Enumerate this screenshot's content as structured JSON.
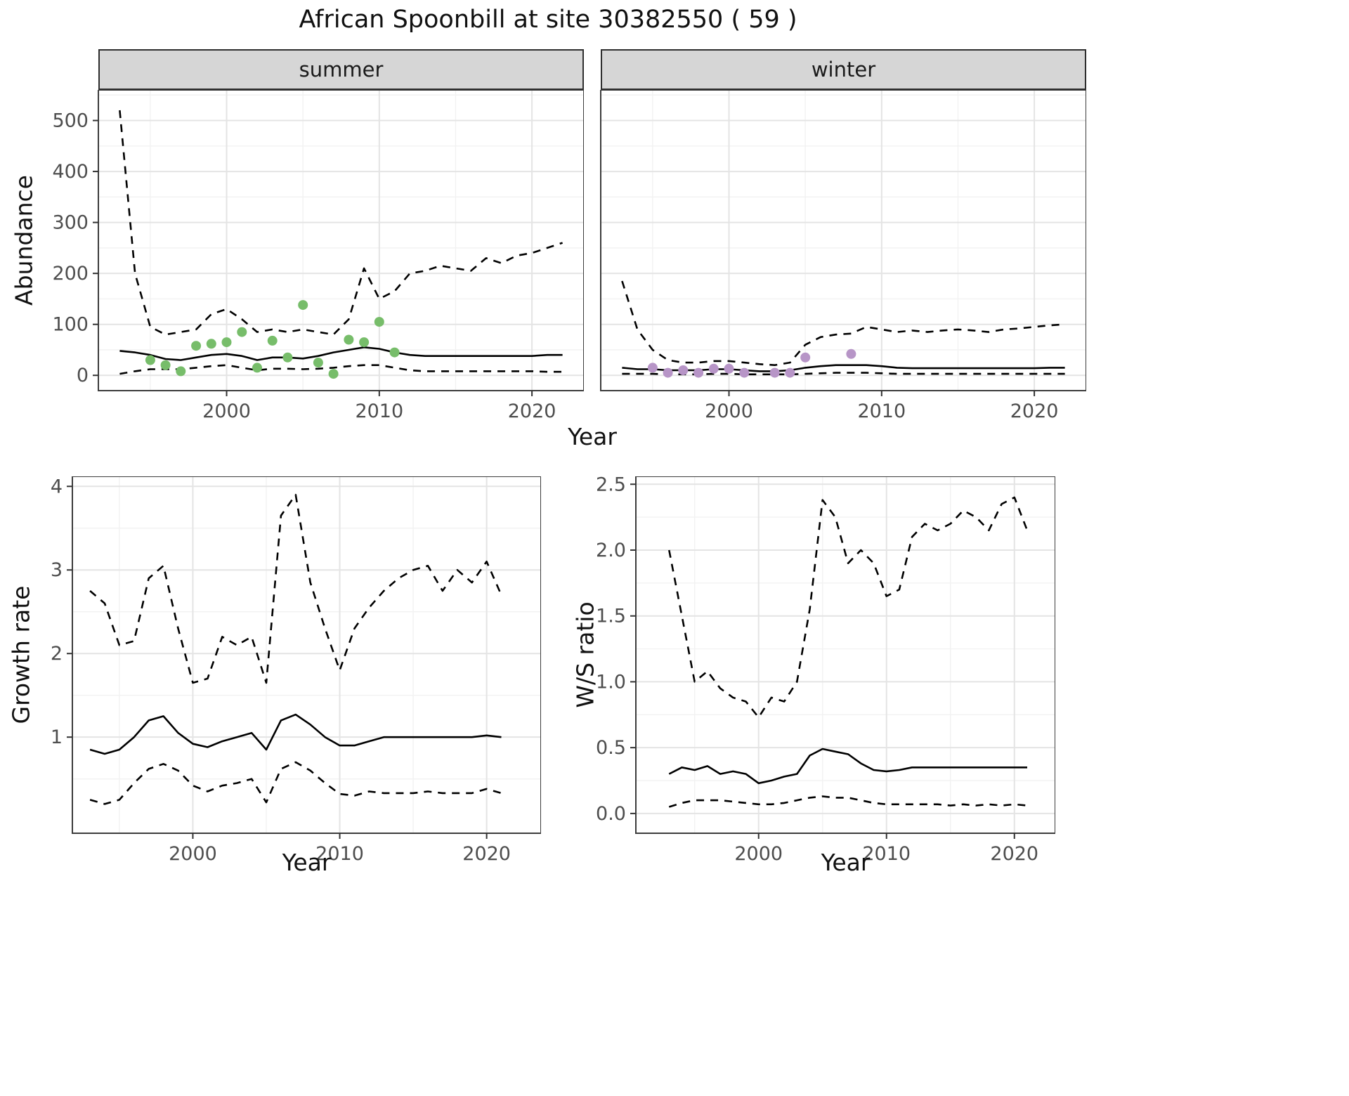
{
  "title": "African Spoonbill at site 30382550 ( 59 )",
  "facets": [
    {
      "label": "summer"
    },
    {
      "label": "winter"
    }
  ],
  "axis_labels": {
    "abundance": "Abundance",
    "year_top": "Year",
    "growth_rate": "Growth rate",
    "ws_ratio": "W/S ratio",
    "year_bottom_left": "Year",
    "year_bottom_right": "Year"
  },
  "colors": {
    "summer_points": "#77bd6a",
    "winter_points": "#b795c7",
    "line": "#000000",
    "grid_major": "#e4e4e4",
    "grid_minor": "#f2f2f2",
    "panel_border": "#3c3c3c",
    "strip_bg": "#d6d6d6",
    "axis_text": "#4d4d4d",
    "tick_mark": "#333333"
  },
  "chart_data": [
    {
      "id": "abundance-summer",
      "type": "line",
      "facet": "summer",
      "xlabel": "Year",
      "ylabel": "Abundance",
      "xlim": [
        1991.6,
        2023.4
      ],
      "ylim": [
        -30,
        560
      ],
      "xticks": [
        2000,
        2010,
        2020
      ],
      "xtick_labels": [
        "2000",
        "2010",
        "2020"
      ],
      "yticks": [
        0,
        100,
        200,
        300,
        400,
        500
      ],
      "ytick_labels": [
        "0",
        "100",
        "200",
        "300",
        "400",
        "500"
      ],
      "x": [
        1993,
        1994,
        1995,
        1996,
        1997,
        1998,
        1999,
        2000,
        2001,
        2002,
        2003,
        2004,
        2005,
        2006,
        2007,
        2008,
        2009,
        2010,
        2011,
        2012,
        2013,
        2014,
        2015,
        2016,
        2017,
        2018,
        2019,
        2020,
        2021,
        2022
      ],
      "series": [
        {
          "name": "ci-upper",
          "style": "dashed",
          "values": [
            520,
            200,
            95,
            80,
            85,
            90,
            120,
            130,
            110,
            85,
            90,
            85,
            90,
            85,
            80,
            110,
            210,
            150,
            165,
            200,
            205,
            215,
            210,
            205,
            230,
            220,
            235,
            240,
            250,
            260
          ]
        },
        {
          "name": "median",
          "style": "solid",
          "values": [
            48,
            45,
            40,
            32,
            30,
            35,
            40,
            42,
            38,
            30,
            35,
            35,
            33,
            38,
            45,
            50,
            55,
            52,
            45,
            40,
            38,
            38,
            38,
            38,
            38,
            38,
            38,
            38,
            40,
            40
          ]
        },
        {
          "name": "ci-lower",
          "style": "dashed",
          "values": [
            3,
            8,
            12,
            12,
            12,
            15,
            18,
            20,
            15,
            10,
            13,
            13,
            12,
            13,
            15,
            18,
            20,
            20,
            15,
            10,
            8,
            8,
            8,
            8,
            8,
            8,
            8,
            8,
            7,
            7
          ]
        }
      ],
      "points": {
        "name": "observed-counts-summer",
        "color_key": "summer_points",
        "values": [
          [
            1995,
            30
          ],
          [
            1996,
            20
          ],
          [
            1997,
            8
          ],
          [
            1998,
            58
          ],
          [
            1999,
            62
          ],
          [
            2000,
            65
          ],
          [
            2001,
            85
          ],
          [
            2002,
            15
          ],
          [
            2003,
            68
          ],
          [
            2004,
            35
          ],
          [
            2005,
            138
          ],
          [
            2006,
            25
          ],
          [
            2007,
            3
          ],
          [
            2008,
            70
          ],
          [
            2009,
            65
          ],
          [
            2010,
            105
          ],
          [
            2011,
            45
          ]
        ]
      }
    },
    {
      "id": "abundance-winter",
      "type": "line",
      "facet": "winter",
      "xlabel": "Year",
      "ylabel": "Abundance",
      "xlim": [
        1991.6,
        2023.4
      ],
      "ylim": [
        -30,
        560
      ],
      "xticks": [
        2000,
        2010,
        2020
      ],
      "xtick_labels": [
        "2000",
        "2010",
        "2020"
      ],
      "yticks": [
        0,
        100,
        200,
        300,
        400,
        500
      ],
      "ytick_labels": [
        "0",
        "100",
        "200",
        "300",
        "400",
        "500"
      ],
      "x": [
        1993,
        1994,
        1995,
        1996,
        1997,
        1998,
        1999,
        2000,
        2001,
        2002,
        2003,
        2004,
        2005,
        2006,
        2007,
        2008,
        2009,
        2010,
        2011,
        2012,
        2013,
        2014,
        2015,
        2016,
        2017,
        2018,
        2019,
        2020,
        2021,
        2022
      ],
      "series": [
        {
          "name": "ci-upper",
          "style": "dashed",
          "values": [
            185,
            90,
            50,
            30,
            25,
            25,
            28,
            28,
            25,
            22,
            20,
            25,
            60,
            75,
            80,
            82,
            95,
            90,
            85,
            88,
            85,
            88,
            90,
            88,
            85,
            90,
            92,
            95,
            98,
            100
          ]
        },
        {
          "name": "median",
          "style": "solid",
          "values": [
            15,
            12,
            12,
            10,
            10,
            10,
            12,
            12,
            10,
            8,
            8,
            10,
            15,
            18,
            20,
            20,
            20,
            18,
            15,
            14,
            14,
            14,
            14,
            14,
            14,
            14,
            14,
            14,
            15,
            15
          ]
        },
        {
          "name": "ci-lower",
          "style": "dashed",
          "values": [
            3,
            3,
            3,
            2,
            2,
            2,
            3,
            3,
            2,
            2,
            2,
            2,
            3,
            4,
            5,
            5,
            5,
            4,
            3,
            3,
            3,
            3,
            3,
            3,
            3,
            3,
            3,
            3,
            3,
            3
          ]
        }
      ],
      "points": {
        "name": "observed-counts-winter",
        "color_key": "winter_points",
        "values": [
          [
            1995,
            15
          ],
          [
            1996,
            5
          ],
          [
            1997,
            10
          ],
          [
            1998,
            5
          ],
          [
            1999,
            13
          ],
          [
            2000,
            13
          ],
          [
            2001,
            5
          ],
          [
            2003,
            5
          ],
          [
            2004,
            5
          ],
          [
            2005,
            35
          ],
          [
            2008,
            42
          ]
        ]
      }
    },
    {
      "id": "growth-rate",
      "type": "line",
      "xlabel": "Year",
      "ylabel": "Growth rate",
      "xlim": [
        1991.8,
        2023.7
      ],
      "ylim": [
        -0.15,
        4.12
      ],
      "xticks": [
        2000,
        2010,
        2020
      ],
      "xtick_labels": [
        "2000",
        "2010",
        "2020"
      ],
      "yticks": [
        1,
        2,
        3,
        4
      ],
      "ytick_labels": [
        "1",
        "2",
        "3",
        "4"
      ],
      "x": [
        1993,
        1994,
        1995,
        1996,
        1997,
        1998,
        1999,
        2000,
        2001,
        2002,
        2003,
        2004,
        2005,
        2006,
        2007,
        2008,
        2009,
        2010,
        2011,
        2012,
        2013,
        2014,
        2015,
        2016,
        2017,
        2018,
        2019,
        2020,
        2021
      ],
      "series": [
        {
          "name": "ci-upper",
          "style": "dashed",
          "values": [
            2.75,
            2.6,
            2.1,
            2.15,
            2.9,
            3.05,
            2.3,
            1.65,
            1.7,
            2.2,
            2.1,
            2.2,
            1.65,
            3.65,
            3.9,
            2.85,
            2.3,
            1.8,
            2.3,
            2.55,
            2.75,
            2.9,
            3.0,
            3.05,
            2.75,
            3.0,
            2.85,
            3.1,
            2.7
          ]
        },
        {
          "name": "median",
          "style": "solid",
          "values": [
            0.85,
            0.8,
            0.85,
            1.0,
            1.2,
            1.25,
            1.05,
            0.92,
            0.88,
            0.95,
            1.0,
            1.05,
            0.85,
            1.2,
            1.27,
            1.15,
            1.0,
            0.9,
            0.9,
            0.95,
            1.0,
            1.0,
            1.0,
            1.0,
            1.0,
            1.0,
            1.0,
            1.02,
            1.0
          ]
        },
        {
          "name": "ci-lower",
          "style": "dashed",
          "values": [
            0.25,
            0.2,
            0.25,
            0.45,
            0.62,
            0.68,
            0.6,
            0.42,
            0.35,
            0.42,
            0.45,
            0.5,
            0.22,
            0.62,
            0.7,
            0.6,
            0.45,
            0.32,
            0.3,
            0.35,
            0.33,
            0.33,
            0.33,
            0.35,
            0.33,
            0.33,
            0.33,
            0.38,
            0.33
          ]
        }
      ]
    },
    {
      "id": "ws-ratio",
      "type": "line",
      "xlabel": "Year",
      "ylabel": "W/S ratio",
      "xlim": [
        1990.4,
        2023.2
      ],
      "ylim": [
        -0.15,
        2.56
      ],
      "xticks": [
        2000,
        2010,
        2020
      ],
      "xtick_labels": [
        "2000",
        "2010",
        "2020"
      ],
      "yticks": [
        0,
        0.5,
        1.0,
        1.5,
        2.0,
        2.5
      ],
      "ytick_labels": [
        "0.0",
        "0.5",
        "1.0",
        "1.5",
        "2.0",
        "2.5"
      ],
      "x": [
        1993,
        1994,
        1995,
        1996,
        1997,
        1998,
        1999,
        2000,
        2001,
        2002,
        2003,
        2004,
        2005,
        2006,
        2007,
        2008,
        2009,
        2010,
        2011,
        2012,
        2013,
        2014,
        2015,
        2016,
        2017,
        2018,
        2019,
        2020,
        2021
      ],
      "series": [
        {
          "name": "ci-upper",
          "style": "dashed",
          "values": [
            2.0,
            1.5,
            1.0,
            1.08,
            0.95,
            0.88,
            0.85,
            0.73,
            0.88,
            0.85,
            1.0,
            1.55,
            2.38,
            2.25,
            1.9,
            2.0,
            1.9,
            1.65,
            1.7,
            2.1,
            2.2,
            2.15,
            2.2,
            2.3,
            2.25,
            2.15,
            2.35,
            2.4,
            2.15
          ]
        },
        {
          "name": "median",
          "style": "solid",
          "values": [
            0.3,
            0.35,
            0.33,
            0.36,
            0.3,
            0.32,
            0.3,
            0.23,
            0.25,
            0.28,
            0.3,
            0.44,
            0.49,
            0.47,
            0.45,
            0.38,
            0.33,
            0.32,
            0.33,
            0.35,
            0.35,
            0.35,
            0.35,
            0.35,
            0.35,
            0.35,
            0.35,
            0.35,
            0.35
          ]
        },
        {
          "name": "ci-lower",
          "style": "dashed",
          "values": [
            0.05,
            0.08,
            0.1,
            0.1,
            0.1,
            0.09,
            0.08,
            0.07,
            0.07,
            0.08,
            0.1,
            0.12,
            0.13,
            0.12,
            0.12,
            0.1,
            0.08,
            0.07,
            0.07,
            0.07,
            0.07,
            0.07,
            0.06,
            0.07,
            0.06,
            0.07,
            0.06,
            0.07,
            0.06
          ]
        }
      ]
    }
  ]
}
